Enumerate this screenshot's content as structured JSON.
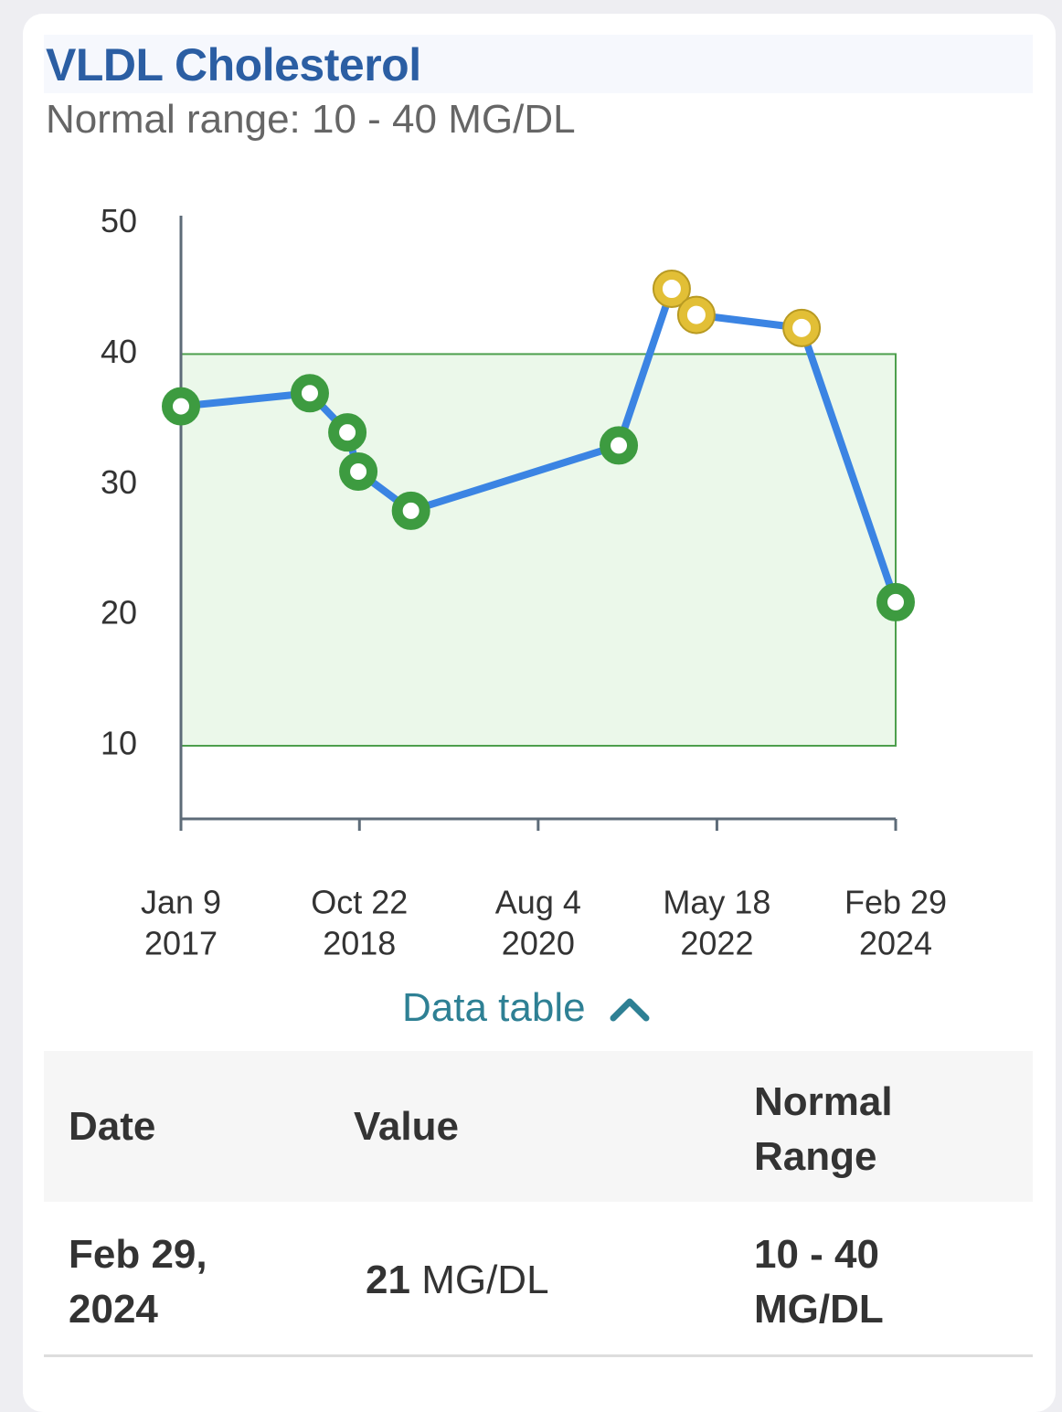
{
  "header": {
    "title": "VLDL Cholesterol",
    "subtitle": "Normal range: 10 - 40 MG/DL"
  },
  "chart_data": {
    "type": "line",
    "x": [
      "2017-01-09",
      "2018-04-24",
      "2018-09-08",
      "2018-10-18",
      "2019-04-28",
      "2021-05-25",
      "2021-12-04",
      "2022-03-04",
      "2023-03-23",
      "2024-02-29"
    ],
    "values": [
      36,
      37,
      34,
      31,
      28,
      33,
      45,
      43,
      42,
      21
    ],
    "color": "#3b84e3",
    "point_color": "#3d9b40",
    "out_of_range_point_color": "#e2bf36",
    "band": [
      10,
      40
    ],
    "band_color": "#ebf8ea",
    "xlim": [
      "2017-01-09",
      "2024-02-29"
    ],
    "xticks": [
      {
        "value": "2017-01-09",
        "label": [
          "Jan 9",
          "2017"
        ]
      },
      {
        "value": "2018-10-22",
        "label": [
          "Oct 22",
          "2018"
        ]
      },
      {
        "value": "2020-08-04",
        "label": [
          "Aug 4",
          "2020"
        ]
      },
      {
        "value": "2022-05-18",
        "label": [
          "May 18",
          "2022"
        ]
      },
      {
        "value": "2024-02-29",
        "label": [
          "Feb 29",
          "2024"
        ]
      }
    ],
    "ylim": [
      4.4,
      50.6
    ],
    "yticks": [
      10,
      20,
      30,
      40,
      50
    ]
  },
  "toggle": "Data table",
  "table": {
    "columns": [
      "Date",
      "Value",
      "Normal Range"
    ],
    "rows": [
      [
        "Feb 29, 2024",
        {
          "value": 21,
          "unit": "MG/DL"
        },
        "10 - 40 MG/DL"
      ]
    ]
  }
}
